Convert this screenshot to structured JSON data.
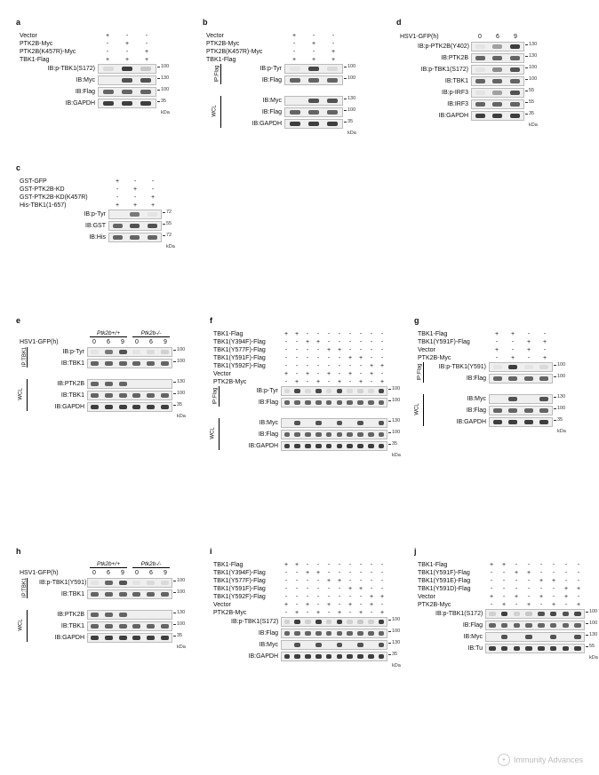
{
  "a": {
    "label": "a",
    "treatments": [
      "Vector",
      "PTK2B-Myc",
      "PTK2B(K457R)-Myc",
      "TBK1-Flag"
    ],
    "pm": [
      [
        "+",
        "-",
        "-"
      ],
      [
        "-",
        "+",
        "-"
      ],
      [
        "-",
        "-",
        "+"
      ],
      [
        "+",
        "+",
        "+"
      ]
    ],
    "rows": [
      {
        "ib": "IB:p-TBK1(S172)",
        "mw": "100",
        "bands": [
          0.1,
          0.9,
          0.2
        ]
      },
      {
        "ib": "IB:Myc",
        "mw": "130",
        "bands": [
          0,
          0.8,
          0.8
        ]
      },
      {
        "ib": "IB:Flag",
        "mw": "100",
        "bands": [
          0.7,
          0.7,
          0.7
        ]
      },
      {
        "ib": "IB:GAPDH",
        "mw": "35",
        "bands": [
          0.9,
          0.9,
          0.9
        ]
      }
    ],
    "kda": "kDa"
  },
  "b": {
    "label": "b",
    "treatments": [
      "Vector",
      "PTK2B-Myc",
      "PTK2B(K457R)-Myc",
      "TBK1-Flag"
    ],
    "pm": [
      [
        "+",
        "-",
        "-"
      ],
      [
        "-",
        "+",
        "-"
      ],
      [
        "-",
        "-",
        "+"
      ],
      [
        "+",
        "+",
        "+"
      ]
    ],
    "ip_label": "IP:Flag",
    "ip_rows": [
      {
        "ib": "IB:p-Tyr",
        "mw": "100",
        "bands": [
          0.05,
          0.85,
          0.1
        ]
      },
      {
        "ib": "IB:Flag",
        "mw": "100",
        "bands": [
          0.7,
          0.7,
          0.7
        ]
      }
    ],
    "wcl_label": "WCL",
    "wcl_rows": [
      {
        "ib": "IB:Myc",
        "mw": "130",
        "bands": [
          0,
          0.8,
          0.8
        ]
      },
      {
        "ib": "IB:Flag",
        "mw": "100",
        "bands": [
          0.7,
          0.7,
          0.7
        ]
      },
      {
        "ib": "IB:GAPDH",
        "mw": "35",
        "bands": [
          0.9,
          0.9,
          0.9
        ]
      }
    ],
    "kda": "kDa"
  },
  "c": {
    "label": "c",
    "treatments": [
      "GST-GFP",
      "GST-PTK2B-KD",
      "GST-PTK2B-KD(K457R)",
      "His-TBK1(1-657)"
    ],
    "pm": [
      [
        "+",
        "-",
        "-"
      ],
      [
        "-",
        "+",
        "-"
      ],
      [
        "-",
        "-",
        "+"
      ],
      [
        "+",
        "+",
        "+"
      ]
    ],
    "rows": [
      {
        "ib": "IB:p-Tyr",
        "mw": "72",
        "bands": [
          0,
          0.6,
          0.05
        ]
      },
      {
        "ib": "IB:GST",
        "mw": "55",
        "bands": [
          0.7,
          0.8,
          0.8
        ]
      },
      {
        "ib": "IB:His",
        "mw": "72",
        "bands": [
          0.7,
          0.7,
          0.7
        ]
      }
    ],
    "kda": "kDa"
  },
  "d": {
    "label": "d",
    "header": "HSV1-GFP(h)",
    "times": [
      "0",
      "6",
      "9"
    ],
    "rows": [
      {
        "ib": "IB:p-PTK2B(Y402)",
        "mw": "130",
        "bands": [
          0.05,
          0.4,
          0.9
        ]
      },
      {
        "ib": "IB:PTK2B",
        "mw": "130",
        "bands": [
          0.7,
          0.7,
          0.7
        ]
      },
      {
        "ib": "IB:p-TBK1(S172)",
        "mw": "100",
        "bands": [
          0.05,
          0.5,
          0.8
        ]
      },
      {
        "ib": "IB:TBK1",
        "mw": "100",
        "bands": [
          0.7,
          0.7,
          0.7
        ]
      },
      {
        "ib": "IB:p-IRF3",
        "mw": "55",
        "bands": [
          0.05,
          0.4,
          0.8
        ]
      },
      {
        "ib": "IB:IRF3",
        "mw": "55",
        "bands": [
          0.7,
          0.7,
          0.7
        ]
      },
      {
        "ib": "IB:GAPDH",
        "mw": "35",
        "bands": [
          0.9,
          0.9,
          0.9
        ]
      }
    ],
    "kda": "kDa"
  },
  "e": {
    "label": "e",
    "genotypes": [
      "Ptk2b+/+",
      "Ptk2b-/-"
    ],
    "header": "HSV1-GFP(h)",
    "times": [
      "0",
      "6",
      "9",
      "0",
      "6",
      "9"
    ],
    "ip_label": "IP:TBK1",
    "ip_rows": [
      {
        "ib": "IB:p-Tyr",
        "mw": "100",
        "bands": [
          0.05,
          0.6,
          0.8,
          0.05,
          0.1,
          0.15
        ]
      },
      {
        "ib": "IB:TBK1",
        "mw": "100",
        "bands": [
          0.7,
          0.7,
          0.7,
          0.7,
          0.7,
          0.7
        ]
      }
    ],
    "wcl_label": "WCL",
    "wcl_rows": [
      {
        "ib": "IB:PTK2B",
        "mw": "130",
        "bands": [
          0.7,
          0.7,
          0.7,
          0,
          0,
          0
        ]
      },
      {
        "ib": "IB:TBK1",
        "mw": "100",
        "bands": [
          0.7,
          0.7,
          0.7,
          0.7,
          0.7,
          0.7
        ]
      },
      {
        "ib": "IB:GAPDH",
        "mw": "35",
        "bands": [
          0.9,
          0.9,
          0.9,
          0.9,
          0.9,
          0.9
        ]
      }
    ],
    "kda": "kDa"
  },
  "f": {
    "label": "f",
    "treatments": [
      "TBK1-Flag",
      "TBK1(Y394F)-Flag",
      "TBK1(Y577F)-Flag",
      "TBK1(Y591F)-Flag",
      "TBK1(Y592F)-Flag",
      "Vector",
      "PTK2B-Myc"
    ],
    "pm": [
      [
        "+",
        "+",
        "-",
        "-",
        "-",
        "-",
        "-",
        "-",
        "-",
        "-"
      ],
      [
        "-",
        "-",
        "+",
        "+",
        "-",
        "-",
        "-",
        "-",
        "-",
        "-"
      ],
      [
        "-",
        "-",
        "-",
        "-",
        "+",
        "+",
        "-",
        "-",
        "-",
        "-"
      ],
      [
        "-",
        "-",
        "-",
        "-",
        "-",
        "-",
        "+",
        "+",
        "-",
        "-"
      ],
      [
        "-",
        "-",
        "-",
        "-",
        "-",
        "-",
        "-",
        "-",
        "+",
        "+"
      ],
      [
        "+",
        "-",
        "+",
        "-",
        "+",
        "-",
        "+",
        "-",
        "+",
        "-"
      ],
      [
        "-",
        "+",
        "-",
        "+",
        "-",
        "+",
        "-",
        "+",
        "-",
        "+"
      ]
    ],
    "ip_label": "IP:Flag",
    "ip_rows": [
      {
        "ib": "IB:p-Tyr",
        "mw": "100",
        "bands": [
          0.1,
          0.85,
          0.1,
          0.85,
          0.1,
          0.85,
          0.1,
          0.15,
          0.1,
          0.85
        ]
      },
      {
        "ib": "IB:Flag",
        "mw": "100",
        "bands": [
          0.7,
          0.7,
          0.7,
          0.7,
          0.7,
          0.7,
          0.7,
          0.7,
          0.7,
          0.7
        ]
      }
    ],
    "wcl_label": "WCL",
    "wcl_rows": [
      {
        "ib": "IB:Myc",
        "mw": "130",
        "bands": [
          0,
          0.8,
          0,
          0.8,
          0,
          0.8,
          0,
          0.8,
          0,
          0.8
        ]
      },
      {
        "ib": "IB:Flag",
        "mw": "100",
        "bands": [
          0.7,
          0.7,
          0.7,
          0.7,
          0.7,
          0.7,
          0.7,
          0.7,
          0.7,
          0.7
        ]
      },
      {
        "ib": "IB:GAPDH",
        "mw": "35",
        "bands": [
          0.9,
          0.9,
          0.9,
          0.9,
          0.9,
          0.9,
          0.9,
          0.9,
          0.9,
          0.9
        ]
      }
    ],
    "kda": "kDa"
  },
  "g": {
    "label": "g",
    "treatments": [
      "TBK1-Flag",
      "TBK1(Y591F)-Flag",
      "Vector",
      "PTK2B-Myc"
    ],
    "pm": [
      [
        "+",
        "+",
        "-",
        "-"
      ],
      [
        "-",
        "-",
        "+",
        "+"
      ],
      [
        "+",
        "-",
        "+",
        "-"
      ],
      [
        "-",
        "+",
        "-",
        "+"
      ]
    ],
    "ip_label": "IP:Flag",
    "ip_rows": [
      {
        "ib": "IB:p-TBK1(Y591)",
        "mw": "100",
        "bands": [
          0.05,
          0.9,
          0.05,
          0.1
        ]
      },
      {
        "ib": "IB:Flag",
        "mw": "100",
        "bands": [
          0.7,
          0.7,
          0.7,
          0.7
        ]
      }
    ],
    "wcl_label": "WCL",
    "wcl_rows": [
      {
        "ib": "IB:Myc",
        "mw": "130",
        "bands": [
          0,
          0.8,
          0,
          0.8
        ]
      },
      {
        "ib": "IB:Flag",
        "mw": "100",
        "bands": [
          0.7,
          0.7,
          0.7,
          0.7
        ]
      },
      {
        "ib": "IB:GAPDH",
        "mw": "35",
        "bands": [
          0.9,
          0.9,
          0.9,
          0.9
        ]
      }
    ],
    "kda": "kDa"
  },
  "h": {
    "label": "h",
    "genotypes": [
      "Ptk2b+/+",
      "Ptk2b-/-"
    ],
    "header": "HSV1-GFP(h)",
    "times": [
      "0",
      "6",
      "9",
      "0",
      "6",
      "9"
    ],
    "ip_label": "IP:TBK1",
    "ip_rows": [
      {
        "ib": "IB:p-TBK1(Y591)",
        "mw": "100",
        "bands": [
          0.05,
          0.7,
          0.8,
          0.05,
          0.1,
          0.1
        ]
      },
      {
        "ib": "IB:TBK1",
        "mw": "100",
        "bands": [
          0.7,
          0.7,
          0.7,
          0.7,
          0.7,
          0.7
        ]
      }
    ],
    "wcl_label": "WCL",
    "wcl_rows": [
      {
        "ib": "IB:PTK2B",
        "mw": "130",
        "bands": [
          0.7,
          0.7,
          0.7,
          0,
          0,
          0
        ]
      },
      {
        "ib": "IB:TBK1",
        "mw": "100",
        "bands": [
          0.7,
          0.7,
          0.7,
          0.7,
          0.7,
          0.7
        ]
      },
      {
        "ib": "IB:GAPDH",
        "mw": "35",
        "bands": [
          0.9,
          0.9,
          0.9,
          0.9,
          0.9,
          0.9
        ]
      }
    ],
    "kda": "kDa"
  },
  "i": {
    "label": "i",
    "treatments": [
      "TBK1-Flag",
      "TBK1(Y394F)-Flag",
      "TBK1(Y577F)-Flag",
      "TBK1(Y591F)-Flag",
      "TBK1(Y592F)-Flag",
      "Vector",
      "PTK2B-Myc"
    ],
    "pm": [
      [
        "+",
        "+",
        "-",
        "-",
        "-",
        "-",
        "-",
        "-",
        "-",
        "-"
      ],
      [
        "-",
        "-",
        "+",
        "+",
        "-",
        "-",
        "-",
        "-",
        "-",
        "-"
      ],
      [
        "-",
        "-",
        "-",
        "-",
        "+",
        "+",
        "-",
        "-",
        "-",
        "-"
      ],
      [
        "-",
        "-",
        "-",
        "-",
        "-",
        "-",
        "+",
        "+",
        "-",
        "-"
      ],
      [
        "-",
        "-",
        "-",
        "-",
        "-",
        "-",
        "-",
        "-",
        "+",
        "+"
      ],
      [
        "+",
        "-",
        "+",
        "-",
        "+",
        "-",
        "+",
        "-",
        "+",
        "-"
      ],
      [
        "-",
        "+",
        "-",
        "+",
        "-",
        "+",
        "-",
        "+",
        "-",
        "+"
      ]
    ],
    "rows": [
      {
        "ib": "IB:p-TBK1(S172)",
        "mw": "100",
        "bands": [
          0.15,
          0.9,
          0.15,
          0.9,
          0.15,
          0.9,
          0.15,
          0.2,
          0.15,
          0.9
        ]
      },
      {
        "ib": "IB:Flag",
        "mw": "100",
        "bands": [
          0.7,
          0.7,
          0.7,
          0.7,
          0.7,
          0.7,
          0.7,
          0.7,
          0.7,
          0.7
        ]
      },
      {
        "ib": "IB:Myc",
        "mw": "130",
        "bands": [
          0,
          0.8,
          0,
          0.8,
          0,
          0.8,
          0,
          0.8,
          0,
          0.8
        ]
      },
      {
        "ib": "IB:GAPDH",
        "mw": "35",
        "bands": [
          0.9,
          0.9,
          0.9,
          0.9,
          0.9,
          0.9,
          0.9,
          0.9,
          0.9,
          0.9
        ]
      }
    ],
    "kda": "kDa"
  },
  "j": {
    "label": "j",
    "treatments": [
      "TBK1-Flag",
      "TBK1(Y591F)-Flag",
      "TBK1(Y591E)-Flag",
      "TBK1(Y591D)-Flag",
      "Vector",
      "PTK2B-Myc"
    ],
    "pm": [
      [
        "+",
        "+",
        "-",
        "-",
        "-",
        "-",
        "-",
        "-"
      ],
      [
        "-",
        "-",
        "+",
        "+",
        "-",
        "-",
        "-",
        "-"
      ],
      [
        "-",
        "-",
        "-",
        "-",
        "+",
        "+",
        "-",
        "-"
      ],
      [
        "-",
        "-",
        "-",
        "-",
        "-",
        "-",
        "+",
        "+"
      ],
      [
        "+",
        "-",
        "+",
        "-",
        "+",
        "-",
        "+",
        "-"
      ],
      [
        "-",
        "+",
        "-",
        "+",
        "-",
        "+",
        "-",
        "+"
      ]
    ],
    "rows": [
      {
        "ib": "IB:p-TBK1(S172)",
        "mw": "100",
        "bands": [
          0.15,
          0.9,
          0.15,
          0.2,
          0.8,
          0.85,
          0.8,
          0.85
        ]
      },
      {
        "ib": "IB:Flag",
        "mw": "100",
        "bands": [
          0.7,
          0.7,
          0.7,
          0.7,
          0.7,
          0.7,
          0.7,
          0.7
        ]
      },
      {
        "ib": "IB:Myc",
        "mw": "130",
        "bands": [
          0,
          0.8,
          0,
          0.8,
          0,
          0.8,
          0,
          0.8
        ]
      },
      {
        "ib": "IB:Tu",
        "mw": "55",
        "bands": [
          0.9,
          0.9,
          0.9,
          0.9,
          0.9,
          0.9,
          0.9,
          0.9
        ]
      }
    ],
    "kda": "kDa"
  },
  "watermark": "Immunity Advances"
}
